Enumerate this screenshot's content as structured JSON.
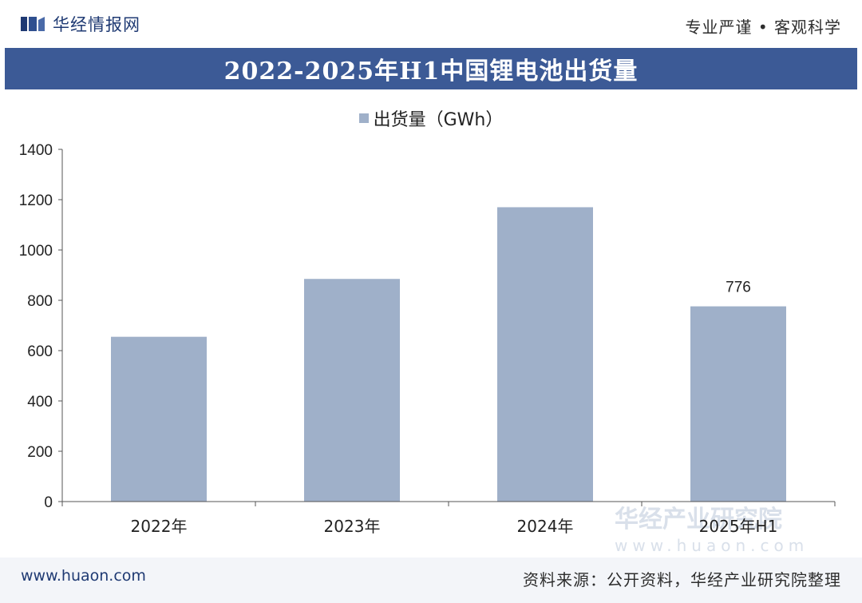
{
  "header": {
    "brand": "华经情报网",
    "slogan": "专业严谨 • 客观科学"
  },
  "title": "2022-2025年H1中国锂电池出货量",
  "legend": {
    "label": "出货量（GWh）"
  },
  "watermark": {
    "name": "华经产业研究院",
    "url": "www.huaon.com"
  },
  "footer": {
    "url": "www.huaon.com",
    "source": "资料来源：公开资料，华经产业研究院整理"
  },
  "colors": {
    "bar": "#9fb0c9",
    "title_band": "#3c5a96",
    "axis": "#555555"
  },
  "chart_data": {
    "type": "bar",
    "categories": [
      "2022年",
      "2023年",
      "2024年",
      "2025年H1"
    ],
    "series": [
      {
        "name": "出货量（GWh）",
        "values": [
          655,
          885,
          1170,
          776
        ]
      }
    ],
    "data_labels": [
      null,
      null,
      null,
      "776"
    ],
    "ylim": [
      0,
      1400
    ],
    "yticks": [
      0,
      200,
      400,
      600,
      800,
      1000,
      1200,
      1400
    ],
    "grid": false,
    "legend_position": "top"
  }
}
